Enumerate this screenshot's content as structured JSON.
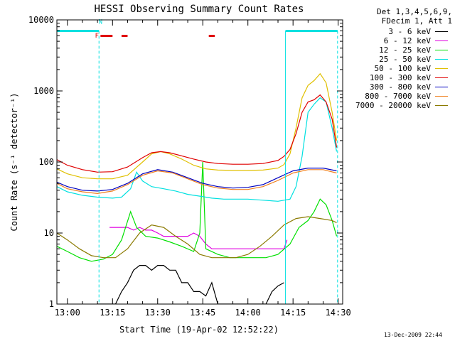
{
  "chart_data": {
    "type": "line",
    "title": "HESSI Observing Summary Count Rates",
    "xlabel": "Start Time (19-Apr-02 12:52:22)",
    "ylabel": "Count Rate (s⁻¹ detector⁻¹)",
    "x_unit": "minutes UT (13:00 = 780)",
    "xlim": [
      776.5,
      871.5
    ],
    "ylim": [
      1,
      10000
    ],
    "y_scale": "log",
    "x_ticks": [
      {
        "value": 780,
        "label": "13:00"
      },
      {
        "value": 795,
        "label": "13:15"
      },
      {
        "value": 810,
        "label": "13:30"
      },
      {
        "value": 825,
        "label": "13:45"
      },
      {
        "value": 840,
        "label": "14:00"
      },
      {
        "value": 855,
        "label": "14:15"
      },
      {
        "value": 870,
        "label": "14:30"
      }
    ],
    "y_ticks": [
      {
        "value": 1,
        "label": "1"
      },
      {
        "value": 10,
        "label": "10"
      },
      {
        "value": 100,
        "label": "100"
      },
      {
        "value": 1000,
        "label": "1000"
      },
      {
        "value": 10000,
        "label": "10000"
      }
    ],
    "grid": false,
    "legend_position": "right",
    "legend_title": [
      "Det 1,3,4,5,6,9,",
      "FDecim 1, Att 1"
    ],
    "series": [
      {
        "name": "3 - 6 keV",
        "color": "#000000",
        "x": [
          790,
          792,
          794,
          796,
          798,
          800,
          802,
          804,
          806,
          808,
          810,
          812,
          814,
          816,
          818,
          820,
          822,
          824,
          826,
          828,
          830,
          832,
          838,
          846,
          848,
          850,
          852
        ],
        "y": [
          1.0,
          1.0,
          1.0,
          1.0,
          1.5,
          2.0,
          3.0,
          3.5,
          3.5,
          3.0,
          3.5,
          3.5,
          3.0,
          3.0,
          2.0,
          2.0,
          1.5,
          1.5,
          1.3,
          2.0,
          1.0,
          1.0,
          1.0,
          1.0,
          1.5,
          1.8,
          2.0
        ]
      },
      {
        "name": "6 - 12 keV",
        "color": "#e000e0",
        "x": [
          794,
          796,
          798,
          800,
          802,
          804,
          806,
          808,
          810,
          812,
          814,
          816,
          818,
          820,
          822,
          824,
          826,
          828,
          830,
          834,
          838,
          846,
          848,
          850,
          852,
          853
        ],
        "y": [
          12,
          12,
          12,
          12,
          11,
          12,
          11,
          11,
          10,
          9,
          9,
          9,
          9,
          9,
          10,
          9,
          7,
          6,
          6,
          6,
          6,
          6,
          6,
          6,
          6,
          8
        ]
      },
      {
        "name": "12 - 25 keV",
        "color": "#00e000",
        "x": [
          776.5,
          780,
          784,
          788,
          792,
          795,
          798,
          801,
          803,
          806,
          810,
          814,
          818,
          822,
          824,
          825,
          826,
          830,
          834,
          838,
          842,
          846,
          850,
          854,
          857,
          860,
          862,
          864,
          866,
          868,
          869.5
        ],
        "y": [
          6.5,
          5.5,
          4.5,
          4.0,
          4.3,
          5.0,
          8.0,
          20.0,
          12.0,
          9.0,
          8.5,
          7.5,
          6.5,
          5.5,
          10,
          100,
          6.0,
          5.0,
          4.5,
          4.5,
          4.5,
          4.5,
          5.0,
          7.0,
          12,
          15,
          20,
          30,
          25,
          15,
          9
        ]
      },
      {
        "name": "25 - 50 keV",
        "color": "#00e0e0",
        "x": [
          776.5,
          780,
          785,
          790,
          795,
          798,
          801,
          803,
          805,
          808,
          812,
          816,
          820,
          824,
          828,
          832,
          836,
          840,
          845,
          850,
          854,
          856,
          858,
          860,
          862,
          864,
          866,
          868,
          869.5
        ],
        "y": [
          45,
          38,
          34,
          32,
          31,
          32,
          42,
          72,
          54,
          45,
          42,
          39,
          35,
          33,
          31,
          30,
          30,
          30,
          29,
          28,
          30,
          45,
          120,
          500,
          650,
          800,
          700,
          300,
          140
        ]
      },
      {
        "name": "50 - 100 keV",
        "color": "#e0c000",
        "x": [
          776.5,
          780,
          785,
          790,
          795,
          800,
          805,
          808,
          811,
          814,
          818,
          822,
          826,
          830,
          835,
          840,
          845,
          850,
          852,
          854,
          856,
          858,
          860,
          862,
          864,
          866,
          868,
          869.5
        ],
        "y": [
          80,
          68,
          60,
          58,
          58,
          65,
          100,
          130,
          140,
          130,
          110,
          90,
          80,
          77,
          76,
          76,
          77,
          82,
          92,
          130,
          300,
          800,
          1200,
          1400,
          1750,
          1300,
          500,
          200
        ]
      },
      {
        "name": "100 - 300 keV",
        "color": "#e00000",
        "x": [
          776.5,
          780,
          785,
          790,
          795,
          800,
          805,
          808,
          811,
          814,
          818,
          822,
          826,
          830,
          835,
          840,
          845,
          850,
          852,
          854,
          856,
          858,
          860,
          862,
          864,
          866,
          868,
          869.5
        ],
        "y": [
          108,
          90,
          78,
          72,
          73,
          85,
          115,
          135,
          140,
          135,
          122,
          110,
          100,
          95,
          93,
          93,
          95,
          105,
          120,
          150,
          250,
          500,
          700,
          750,
          880,
          700,
          400,
          160
        ]
      },
      {
        "name": "300 - 800 keV",
        "color": "#0000c0",
        "x": [
          776.5,
          780,
          785,
          790,
          795,
          800,
          805,
          810,
          815,
          820,
          825,
          830,
          835,
          840,
          845,
          850,
          855,
          860,
          865,
          869.5
        ],
        "y": [
          52,
          45,
          40,
          39,
          41,
          50,
          68,
          78,
          72,
          60,
          50,
          45,
          43,
          44,
          48,
          60,
          75,
          82,
          82,
          75
        ]
      },
      {
        "name": "800 - 7000 keV",
        "color": "#f08020",
        "x": [
          776.5,
          780,
          785,
          790,
          795,
          800,
          805,
          810,
          815,
          820,
          825,
          830,
          835,
          840,
          845,
          850,
          855,
          860,
          865,
          869.5
        ],
        "y": [
          50,
          42,
          38,
          36,
          39,
          48,
          65,
          75,
          70,
          58,
          48,
          43,
          41,
          41,
          45,
          55,
          70,
          78,
          78,
          70
        ]
      },
      {
        "name": "7000 - 20000 keV",
        "color": "#8b7a00",
        "x": [
          776.5,
          780,
          784,
          788,
          792,
          796,
          800,
          804,
          808,
          812,
          816,
          820,
          824,
          828,
          832,
          836,
          840,
          844,
          848,
          852,
          856,
          860,
          864,
          868,
          869.5
        ],
        "y": [
          10,
          8,
          6,
          4.8,
          4.5,
          4.5,
          6,
          10,
          13,
          12,
          9,
          7,
          5,
          4.5,
          4.5,
          4.5,
          5,
          6.5,
          9,
          13,
          16,
          17,
          16,
          15,
          14
        ]
      }
    ],
    "annotations": {
      "flags_y": 7000,
      "flag_letters": [
        {
          "label": "N",
          "x": 791.0,
          "y": 8800,
          "color": "#00e0e0"
        },
        {
          "label": "F",
          "x": 789.8,
          "y": 5600,
          "color": "#e00000"
        }
      ],
      "attenuator_intervals_cyan": [
        [
          776.5,
          790.5
        ],
        [
          852.5,
          869.8
        ]
      ],
      "flare_intervals_red": [
        [
          791.0,
          795.0
        ],
        [
          798.0,
          800.0
        ],
        [
          827.0,
          829.0
        ]
      ],
      "night_boundaries_vertical": [
        {
          "x": 776.5,
          "style": "solid"
        },
        {
          "x": 790.5,
          "style": "dashed"
        },
        {
          "x": 852.5,
          "style": "solid"
        },
        {
          "x": 869.8,
          "style": "dashed"
        }
      ]
    }
  },
  "timestamp": "13-Dec-2009 22:44"
}
